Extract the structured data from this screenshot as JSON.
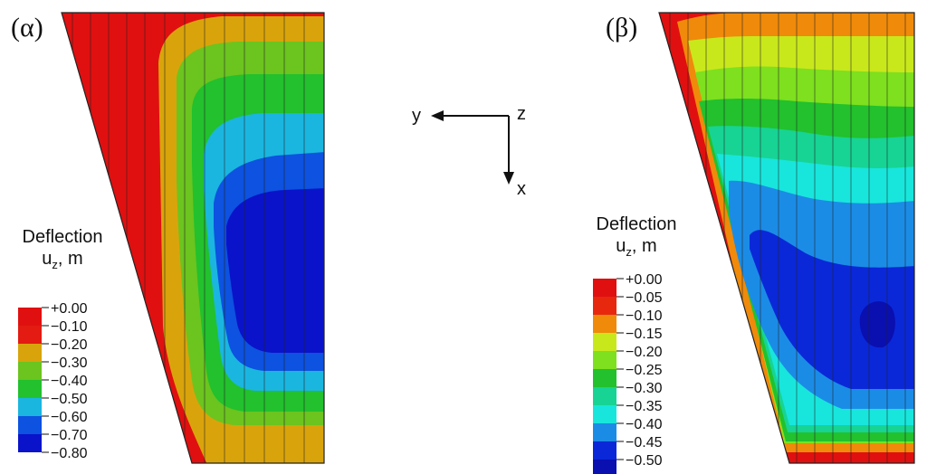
{
  "panels": [
    {
      "label": "(α)",
      "legend": {
        "title": "Deflection",
        "subtitle_main": "u",
        "subtitle_sub": "z",
        "subtitle_unit": ", m",
        "levels": [
          "+0.00",
          "−0.10",
          "−0.20",
          "−0.30",
          "−0.40",
          "−0.50",
          "−0.60",
          "−0.70",
          "−0.80"
        ],
        "colors": [
          "#e01010",
          "#e31b12",
          "#d9a40b",
          "#6cc41f",
          "#22c12d",
          "#1ab6e0",
          "#0d52e0",
          "#0a13c9"
        ]
      }
    },
    {
      "label": "(β)",
      "legend": {
        "title": "Deflection",
        "subtitle_main": "u",
        "subtitle_sub": "z",
        "subtitle_unit": ", m",
        "levels": [
          "+0.00",
          "−0.05",
          "−0.10",
          "−0.15",
          "−0.20",
          "−0.25",
          "−0.30",
          "−0.35",
          "−0.40",
          "−0.45",
          "−0.50"
        ],
        "colors": [
          "#e01010",
          "#e7280f",
          "#f08a0a",
          "#c9e81c",
          "#7ee01e",
          "#22c12d",
          "#17d494",
          "#18e6dc",
          "#1b8ce6",
          "#0a28d8",
          "#0a0fb0"
        ]
      }
    }
  ],
  "axes": {
    "y": "y",
    "z": "z",
    "x": "x"
  }
}
